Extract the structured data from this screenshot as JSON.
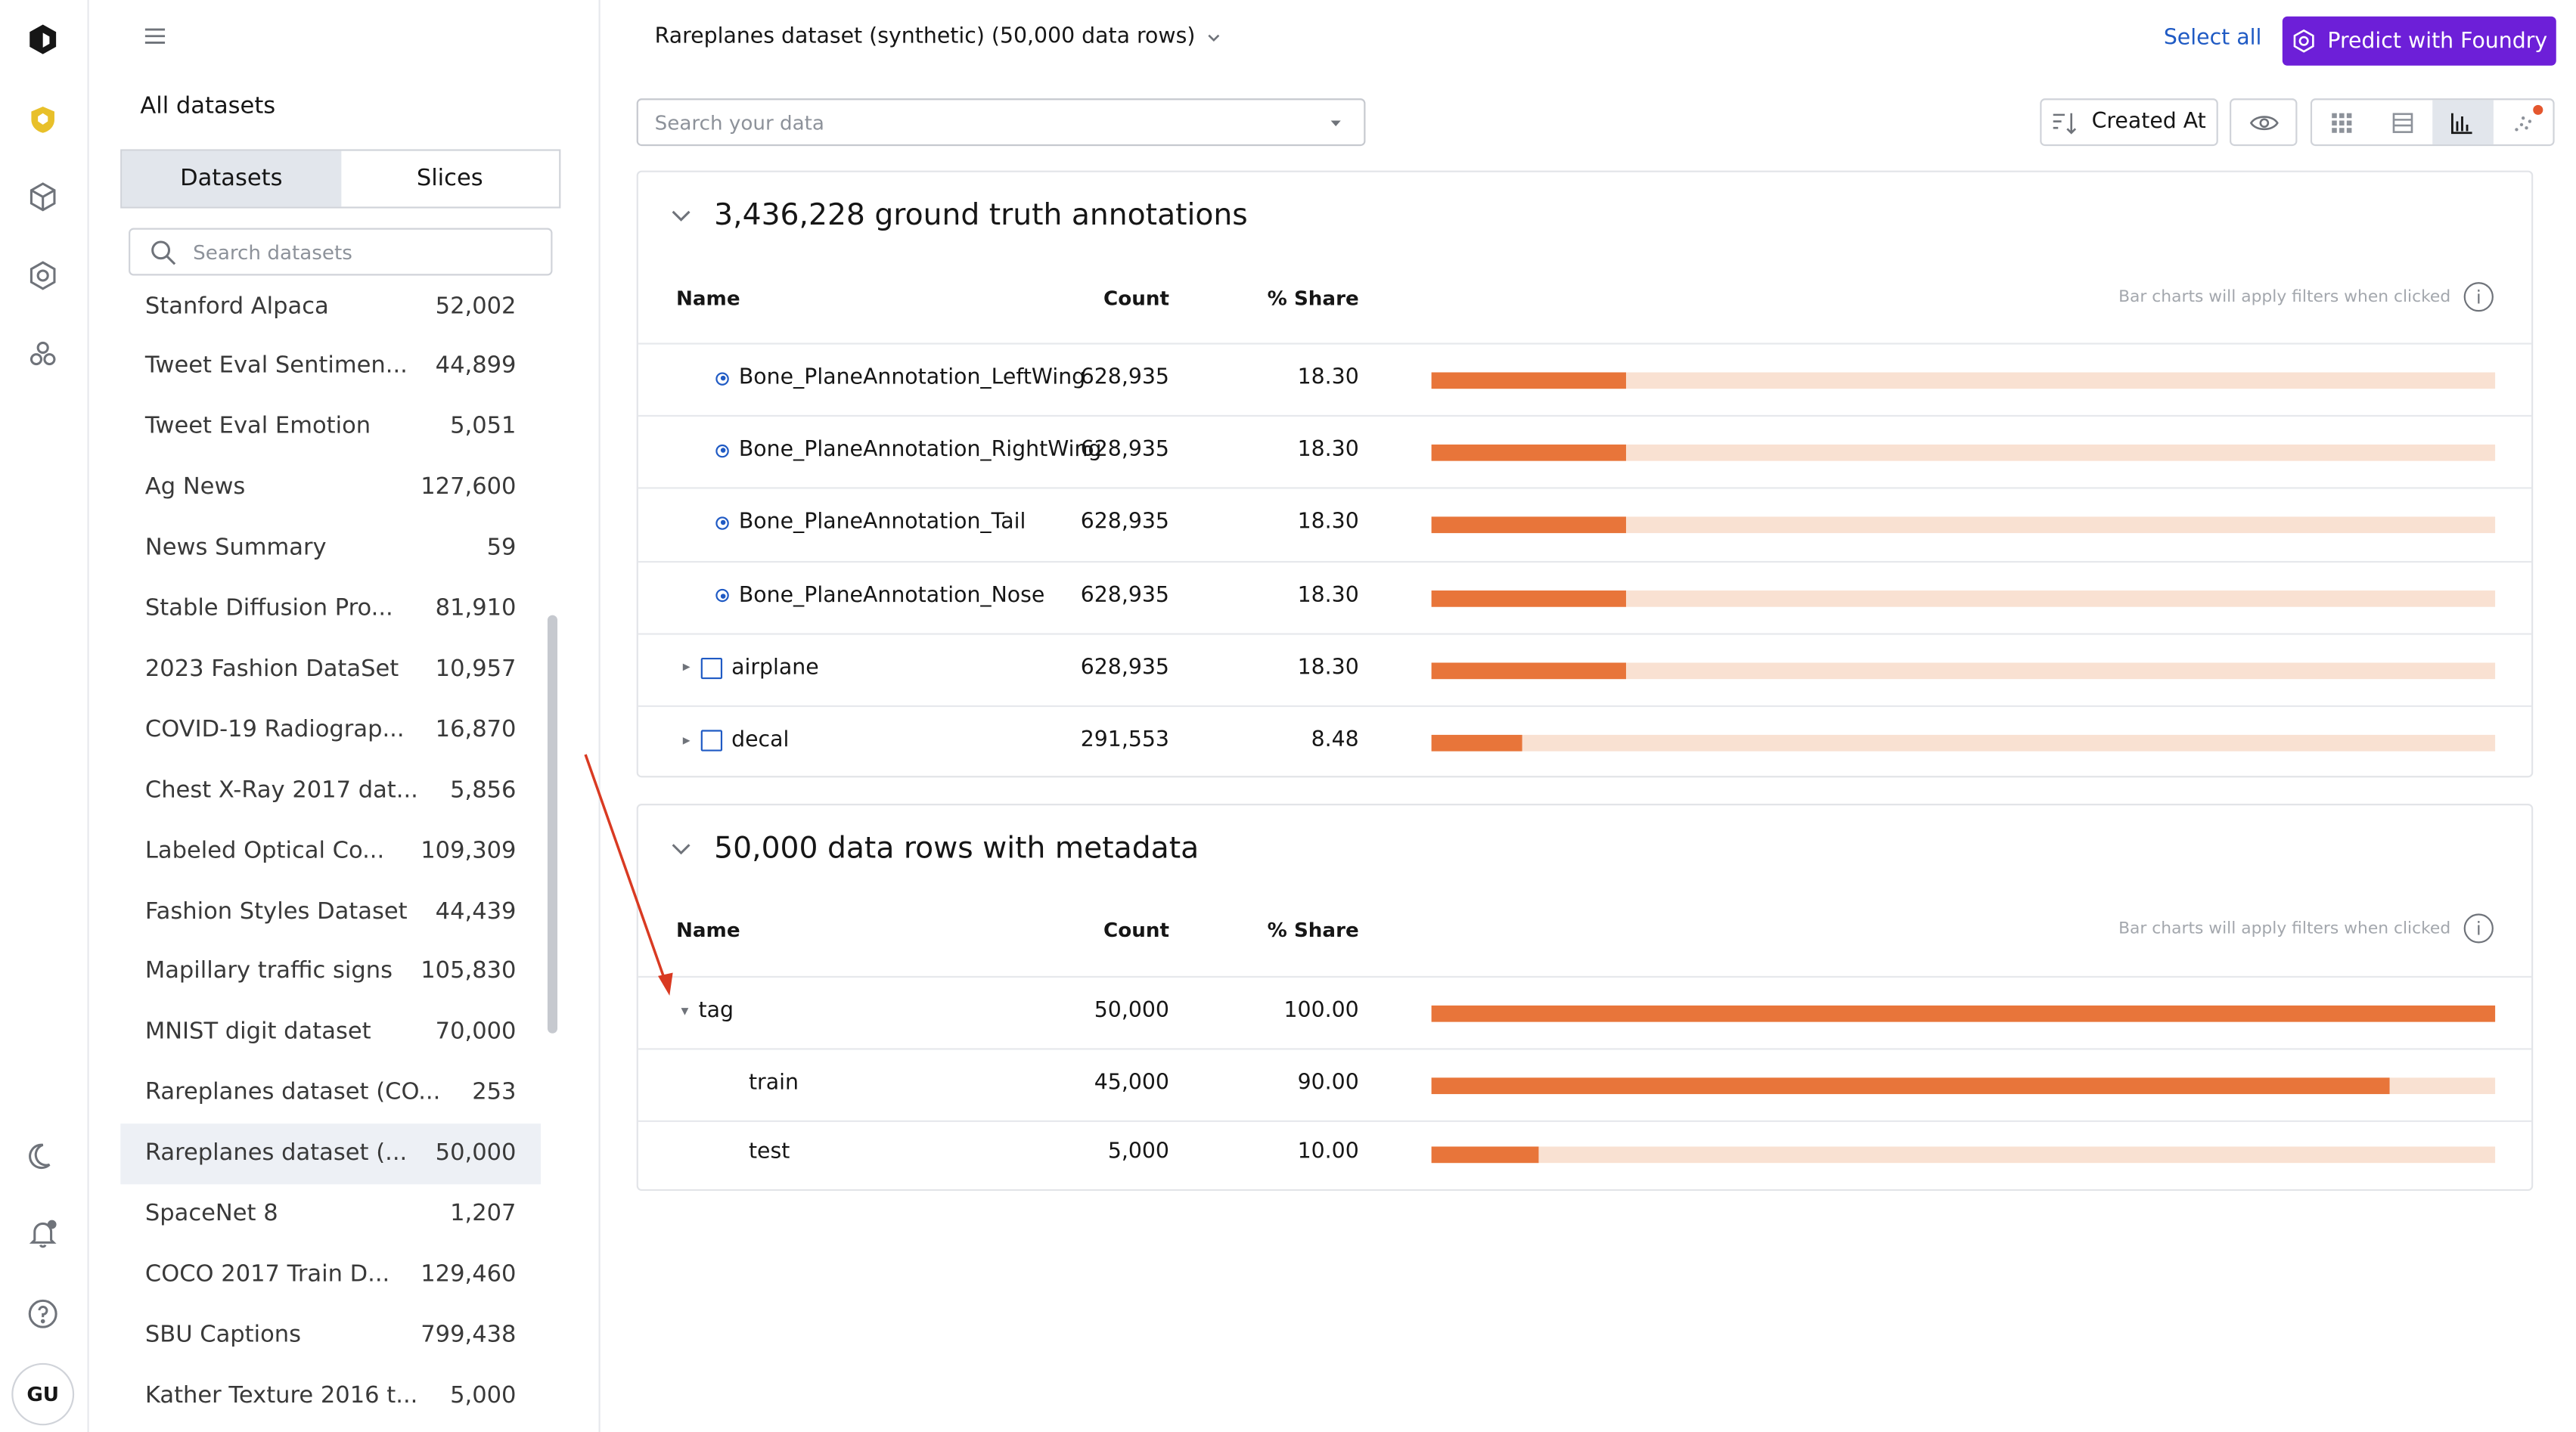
{
  "rail": {
    "icons": [
      "logo-icon",
      "shield-icon",
      "catalog-icon",
      "model-icon",
      "nodes-icon",
      "moon-icon",
      "bell-icon",
      "help-icon"
    ],
    "avatar_initials": "GU"
  },
  "sidebar": {
    "heading": "All datasets",
    "tabs": [
      {
        "label": "Datasets",
        "active": true
      },
      {
        "label": "Slices",
        "active": false
      }
    ],
    "search_placeholder": "Search datasets",
    "datasets": [
      {
        "name": "Stanford Alpaca",
        "count": "52,002"
      },
      {
        "name": "Tweet Eval Sentimen...",
        "count": "44,899"
      },
      {
        "name": "Tweet Eval Emotion",
        "count": "5,051"
      },
      {
        "name": "Ag News",
        "count": "127,600"
      },
      {
        "name": "News Summary",
        "count": "59"
      },
      {
        "name": "Stable Diffusion Pro...",
        "count": "81,910"
      },
      {
        "name": "2023 Fashion DataSet",
        "count": "10,957"
      },
      {
        "name": "COVID-19 Radiograp...",
        "count": "16,870"
      },
      {
        "name": "Chest X-Ray 2017 dat...",
        "count": "5,856"
      },
      {
        "name": "Labeled Optical Co...",
        "count": "109,309"
      },
      {
        "name": "Fashion Styles Dataset",
        "count": "44,439"
      },
      {
        "name": "Mapillary traffic signs",
        "count": "105,830"
      },
      {
        "name": "MNIST digit dataset",
        "count": "70,000"
      },
      {
        "name": "Rareplanes dataset (CO...",
        "count": "253"
      },
      {
        "name": "Rareplanes dataset (...",
        "count": "50,000",
        "selected": true
      },
      {
        "name": "SpaceNet 8",
        "count": "1,207"
      },
      {
        "name": "COCO 2017 Train D...",
        "count": "129,460"
      },
      {
        "name": "SBU Captions",
        "count": "799,438"
      },
      {
        "name": "Kather Texture 2016 t...",
        "count": "5,000"
      }
    ]
  },
  "header": {
    "title": "Rareplanes dataset (synthetic) (50,000 data rows)",
    "select_all": "Select all",
    "predict_button": "Predict with Foundry",
    "search_placeholder": "Search your data",
    "sort_label": "Created At"
  },
  "annotations_card": {
    "title": "3,436,228 ground truth annotations",
    "col_name": "Name",
    "col_count": "Count",
    "col_share": "% Share",
    "hint": "Bar charts will apply filters when clicked",
    "rows": [
      {
        "name": "Bone_PlaneAnnotation_LeftWing",
        "count": "628,935",
        "share": "18.30",
        "fraction": 0.183,
        "kind": "radio"
      },
      {
        "name": "Bone_PlaneAnnotation_RightWing",
        "count": "628,935",
        "share": "18.30",
        "fraction": 0.183,
        "kind": "radio"
      },
      {
        "name": "Bone_PlaneAnnotation_Tail",
        "count": "628,935",
        "share": "18.30",
        "fraction": 0.183,
        "kind": "radio"
      },
      {
        "name": "Bone_PlaneAnnotation_Nose",
        "count": "628,935",
        "share": "18.30",
        "fraction": 0.183,
        "kind": "radio"
      },
      {
        "name": "airplane",
        "count": "628,935",
        "share": "18.30",
        "fraction": 0.183,
        "kind": "checkbox"
      },
      {
        "name": "decal",
        "count": "291,553",
        "share": "8.48",
        "fraction": 0.0848,
        "kind": "checkbox"
      }
    ]
  },
  "metadata_card": {
    "title": "50,000 data rows with metadata",
    "col_name": "Name",
    "col_count": "Count",
    "col_share": "% Share",
    "hint": "Bar charts will apply filters when clicked",
    "rows": [
      {
        "name": "tag",
        "count": "50,000",
        "share": "100.00",
        "fraction": 1.0,
        "kind": "group"
      },
      {
        "name": "train",
        "count": "45,000",
        "share": "90.00",
        "fraction": 0.9,
        "kind": "child"
      },
      {
        "name": "test",
        "count": "5,000",
        "share": "10.00",
        "fraction": 0.1,
        "kind": "child"
      }
    ]
  },
  "colors": {
    "bar_fill": "#e8753a",
    "bar_track": "#f9e1d2",
    "accent": "#6d1fd8",
    "link": "#1f5ac4",
    "annotation_arrow": "#d93a22"
  }
}
